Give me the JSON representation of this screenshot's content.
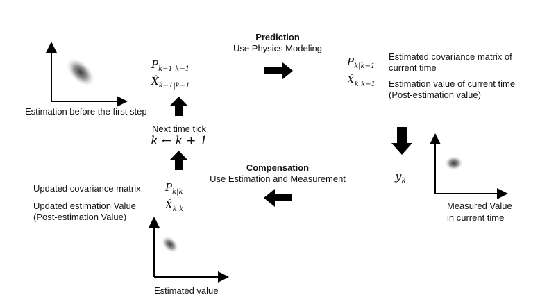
{
  "initial_estimate": {
    "caption": "Estimation before the first step",
    "P": "P",
    "P_sub": "k−1|k−1",
    "X": "X̂",
    "X_sub": "k−1|k−1"
  },
  "prediction": {
    "title": "Prediction",
    "subtitle": "Use Physics Modeling"
  },
  "predicted": {
    "P": "P",
    "P_sub": "k|k−1",
    "X": "X̂",
    "X_sub": "k|k−1",
    "cov_label": [
      "Estimated covariance matrix of",
      "current time"
    ],
    "est_label": [
      "Estimation value of current time",
      "(Post-estimation value)"
    ]
  },
  "time_tick": {
    "label": "Next time tick",
    "formula": "k ← k + 1"
  },
  "measurement": {
    "symbol": "y",
    "symbol_sub": "k",
    "caption": [
      "Measured Value",
      "in current time"
    ]
  },
  "compensation": {
    "title": "Compensation",
    "subtitle": "Use Estimation and Measurement"
  },
  "updated": {
    "cov_label": "Updated covariance matrix",
    "est_label": [
      "Updated estimation Value",
      "(Post-estimation Value)"
    ],
    "P": "P",
    "P_sub": "k|k",
    "X": "X̂",
    "X_sub": "k|k",
    "caption": "Estimated value"
  }
}
